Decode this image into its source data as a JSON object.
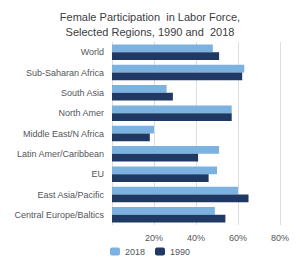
{
  "chart_data": {
    "type": "bar",
    "orientation": "horizontal",
    "title": "Female Participation  in Labor Force,\nSelected Regions, 1990 and  2018",
    "categories": [
      "Central Europe/Baltics",
      "East Asia/Pacific",
      "EU",
      "Latin Amer/Caribbean",
      "Middle East/N Africa",
      "North Amer",
      "South Asia",
      "Sub-Saharan Africa",
      "World"
    ],
    "series": [
      {
        "name": "2018",
        "color": "#7cb2e0",
        "values": [
          49,
          60,
          50,
          51,
          20,
          57,
          26,
          63,
          48
        ]
      },
      {
        "name": "1990",
        "color": "#1f3864",
        "values": [
          54,
          65,
          46,
          41,
          18,
          57,
          29,
          62,
          51
        ]
      }
    ],
    "xlim": [
      0,
      80
    ],
    "xticks": [
      {
        "value": 0,
        "label": null
      },
      {
        "value": 20,
        "label": "20%"
      },
      {
        "value": 40,
        "label": "40%"
      },
      {
        "value": 60,
        "label": "60%"
      },
      {
        "value": 80,
        "label": "80%"
      }
    ],
    "grid": true,
    "legend": "bottom"
  }
}
